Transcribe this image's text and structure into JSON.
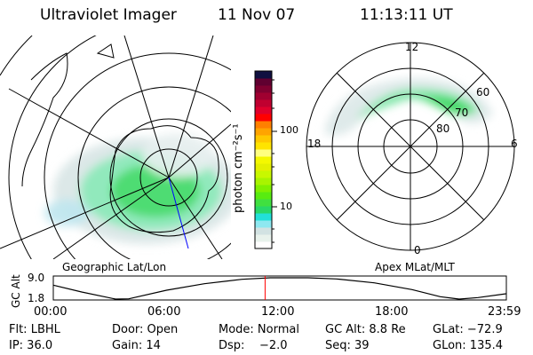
{
  "header": {
    "instrument": "Ultraviolet Imager",
    "date": "11 Nov 07",
    "time": "11:13:11 UT"
  },
  "left_panel": {
    "label": "Geographic Lat/Lon"
  },
  "right_panel": {
    "label": "Apex MLat/MLT",
    "mlt_labels": [
      "12",
      "18",
      "6",
      "0"
    ],
    "mlat_labels": [
      "60",
      "70",
      "80"
    ]
  },
  "colorbar": {
    "unit_label": "photon cm⁻²s⁻¹",
    "ticks": [
      "100",
      "10"
    ],
    "colors": [
      "#ffffff",
      "#e8f2ec",
      "#d2e2e2",
      "#8ee8f0",
      "#22e0d8",
      "#28d868",
      "#40e040",
      "#58ec10",
      "#80f000",
      "#a8f400",
      "#c8f800",
      "#e4f000",
      "#f4f800",
      "#ffff80",
      "#ffe400",
      "#ffc800",
      "#ffa400",
      "#ff8000",
      "#ff0000",
      "#e0002c",
      "#c00030",
      "#a00030",
      "#800030",
      "#600030",
      "#101040"
    ]
  },
  "timeline": {
    "axis_label": "GC Alt",
    "y_ticks": [
      "9.0",
      "1.8"
    ],
    "x_ticks": [
      "00:00",
      "06:00",
      "12:00",
      "18:00",
      "23:59"
    ],
    "current_time_hours": 11.22,
    "altitude_re": [
      [
        0,
        6.5
      ],
      [
        1.5,
        4.2
      ],
      [
        3.3,
        1.8
      ],
      [
        4,
        1.9
      ],
      [
        6,
        4.8
      ],
      [
        8,
        7.0
      ],
      [
        10,
        8.5
      ],
      [
        11.5,
        9.0
      ],
      [
        13.5,
        9.0
      ],
      [
        15,
        8.6
      ],
      [
        17,
        7.3
      ],
      [
        19,
        5.0
      ],
      [
        20.5,
        2.6
      ],
      [
        21.5,
        1.8
      ],
      [
        22.5,
        2.3
      ],
      [
        23.98,
        3.6
      ]
    ],
    "alt_range": [
      1.8,
      9.0
    ],
    "accent": "#ff0000"
  },
  "status": {
    "row1": [
      "Flt: LBHL",
      "Door: Open",
      "Mode: Normal",
      "GC Alt: 8.8 Re",
      "GLat: −72.9"
    ],
    "row2": [
      "IP: 36.0",
      "Gain: 14",
      "Dsp:    −2.0",
      "Seq: 39",
      "GLon: 135.4"
    ]
  }
}
